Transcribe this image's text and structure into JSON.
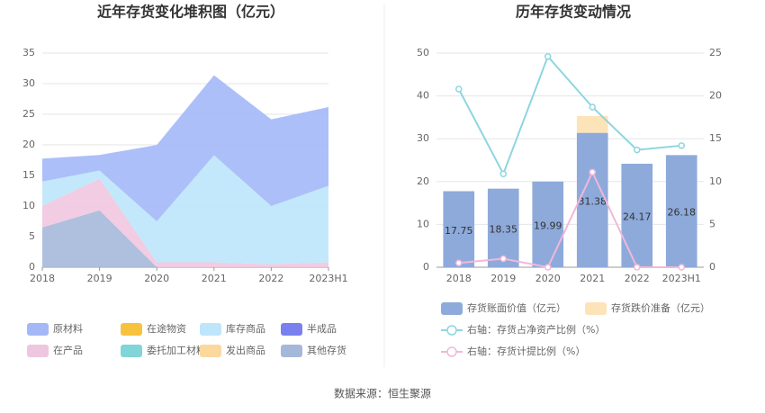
{
  "chart_data": [
    {
      "type": "area",
      "title": "近年存货变化堆积图（亿元）",
      "categories": [
        "2018",
        "2019",
        "2020",
        "2021",
        "2022",
        "2023H1"
      ],
      "ylim": [
        0,
        35
      ],
      "yticks": [
        0,
        5,
        10,
        15,
        20,
        25,
        30,
        35
      ],
      "series": [
        {
          "name": "原材料",
          "color": "#a4b8f8",
          "values": [
            3.75,
            2.55,
            12.49,
            13.08,
            14.17,
            12.88
          ]
        },
        {
          "name": "在途物资",
          "color": "#f7c33f",
          "values": [
            0,
            0,
            0,
            0,
            0,
            0
          ]
        },
        {
          "name": "库存商品",
          "color": "#bde6fb",
          "values": [
            4,
            1.3,
            6.7,
            17.5,
            9.5,
            12.5
          ]
        },
        {
          "name": "半成品",
          "color": "#7b80ef",
          "values": [
            0,
            0,
            0,
            0,
            0,
            0
          ]
        },
        {
          "name": "在产品",
          "color": "#efc6df",
          "values": [
            3.5,
            5.2,
            0.8,
            0.8,
            0.5,
            0.8
          ]
        },
        {
          "name": "委托加工材料",
          "color": "#7fd5d8",
          "values": [
            0,
            0,
            0,
            0,
            0,
            0
          ]
        },
        {
          "name": "发出商品",
          "color": "#fcd89e",
          "values": [
            0,
            0,
            0,
            0,
            0,
            0
          ]
        },
        {
          "name": "其他存货",
          "color": "#a6b8da",
          "values": [
            6.5,
            9.3,
            0,
            0,
            0,
            0
          ]
        }
      ]
    },
    {
      "type": "bar",
      "title": "历年存货变动情况",
      "categories": [
        "2018",
        "2019",
        "2020",
        "2021",
        "2022",
        "2023H1"
      ],
      "ylim": [
        0,
        50
      ],
      "yticks": [
        0,
        10,
        20,
        30,
        40,
        50
      ],
      "y2lim": [
        0,
        25
      ],
      "y2ticks": [
        0,
        5,
        10,
        15,
        20,
        25
      ],
      "series": [
        {
          "name": "存货账面价值（亿元）",
          "color": "#8eaadb",
          "values": [
            17.75,
            18.35,
            19.99,
            31.38,
            24.17,
            26.18
          ]
        },
        {
          "name": "存货跌价准备（亿元）",
          "color": "#fde3b8",
          "values": [
            0,
            0,
            0,
            3.9,
            0,
            0
          ]
        },
        {
          "name": "右轴：存货占净资产比例（%）",
          "color": "#8dd6e0",
          "axis": "y2",
          "values": [
            20.8,
            10.9,
            24.6,
            18.7,
            13.7,
            14.2
          ]
        },
        {
          "name": "右轴：存货计提比例（%）",
          "color": "#f0b8d8",
          "axis": "y2",
          "values": [
            0.5,
            1.0,
            0,
            11.1,
            0,
            0
          ]
        }
      ]
    },
    {
      "source": "数据来源：恒生聚源"
    }
  ]
}
